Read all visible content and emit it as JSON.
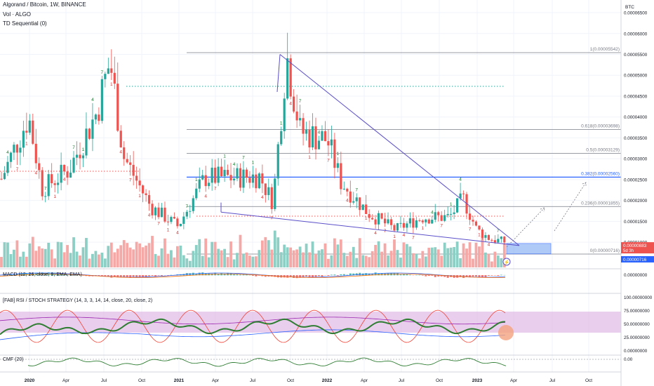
{
  "header": {
    "title": "Algorand / Bitcoin, 1W, BINANCE",
    "vol": "Vol · ALGO",
    "td": "TD Sequential (0)"
  },
  "panels": {
    "macd": "MACD (12, 26, close, 9, EMA, EMA)",
    "rsi": "[FAB] RSI / STOCH STRATEGY (14, 3, 3, 14, 14, close, 20, close, 2)",
    "cmf": "CMF (20)"
  },
  "price_axis": {
    "currency": "BTC",
    "ticks": [
      "0.00006500",
      "0.00006000",
      "0.00005500",
      "0.00005000",
      "0.00004500",
      "0.00004000",
      "0.00003500",
      "0.00003000",
      "0.00002500",
      "0.00002000",
      "0.00001500",
      "0.00001000"
    ],
    "current_price": "0.00000883",
    "countdown": "5d 3h",
    "fib_zero_price": "0.00000716",
    "macd_tick": "0.00000000",
    "rsi_ticks": [
      "100.00000000",
      "75.00000000",
      "50.00000000",
      "25.00000000",
      "0.00000000"
    ],
    "cmf_tick": "0.00"
  },
  "time_axis": [
    "2020",
    "Apr",
    "Jul",
    "Oct",
    "2021",
    "Apr",
    "Jul",
    "Oct",
    "2022",
    "Apr",
    "Jul",
    "Oct",
    "2023",
    "Apr",
    "Jul",
    "Oct"
  ],
  "fib_levels": [
    {
      "ratio": "1",
      "price": "0.00005542",
      "color": "#787b86"
    },
    {
      "ratio": "0.618",
      "price": "0.00003698",
      "color": "#787b86"
    },
    {
      "ratio": "0.5",
      "price": "0.00003129",
      "color": "#787b86"
    },
    {
      "ratio": "0.382",
      "price": "0.00002560",
      "color": "#2962ff"
    },
    {
      "ratio": "0.236",
      "price": "0.00001855",
      "color": "#787b86"
    },
    {
      "ratio": "0",
      "price": "0.00000716",
      "color": "#787b86"
    }
  ],
  "colors": {
    "up": "#26a69a",
    "down": "#ef5350",
    "vol_up": "#8ecfc5",
    "vol_down": "#f5a8a6",
    "wedge": "#5b4fc9",
    "rsi_band": "#e1bee7"
  },
  "chart_data": {
    "type": "candlestick",
    "title": "Algorand / Bitcoin, 1W, BINANCE",
    "y_unit": "BTC",
    "ylim": [
      6.8e-06,
      6.75e-05
    ],
    "x_range": [
      "2019-12",
      "2023-12"
    ],
    "close_series": [
      {
        "date": "2019-12",
        "close": 2.52e-05
      },
      {
        "date": "2020-02",
        "close": 4.02e-05
      },
      {
        "date": "2020-03",
        "close": 2.28e-05
      },
      {
        "date": "2020-05",
        "close": 2.75e-05
      },
      {
        "date": "2020-07",
        "close": 4.1e-05
      },
      {
        "date": "2020-08",
        "close": 5.35e-05
      },
      {
        "date": "2020-09",
        "close": 3.05e-05
      },
      {
        "date": "2020-11",
        "close": 1.85e-05
      },
      {
        "date": "2021-01",
        "close": 1.38e-05
      },
      {
        "date": "2021-03",
        "close": 2.55e-05
      },
      {
        "date": "2021-05",
        "close": 2.55e-05
      },
      {
        "date": "2021-07",
        "close": 2.58e-05
      },
      {
        "date": "2021-08",
        "close": 1.95e-05
      },
      {
        "date": "2021-09",
        "close": 5.5e-05
      },
      {
        "date": "2021-10",
        "close": 3.65e-05
      },
      {
        "date": "2021-12",
        "close": 3.45e-05
      },
      {
        "date": "2022-01",
        "close": 2.45e-05
      },
      {
        "date": "2022-03",
        "close": 1.7e-05
      },
      {
        "date": "2022-05",
        "close": 1.3e-05
      },
      {
        "date": "2022-07",
        "close": 1.6e-05
      },
      {
        "date": "2022-09",
        "close": 1.6e-05
      },
      {
        "date": "2022-10",
        "close": 2.05e-05
      },
      {
        "date": "2022-11",
        "close": 1.3e-05
      },
      {
        "date": "2022-12",
        "close": 1.08e-05
      },
      {
        "date": "2023-02",
        "close": 9.5e-06
      },
      {
        "date": "2023-03",
        "close": 8.8e-06
      }
    ]
  }
}
